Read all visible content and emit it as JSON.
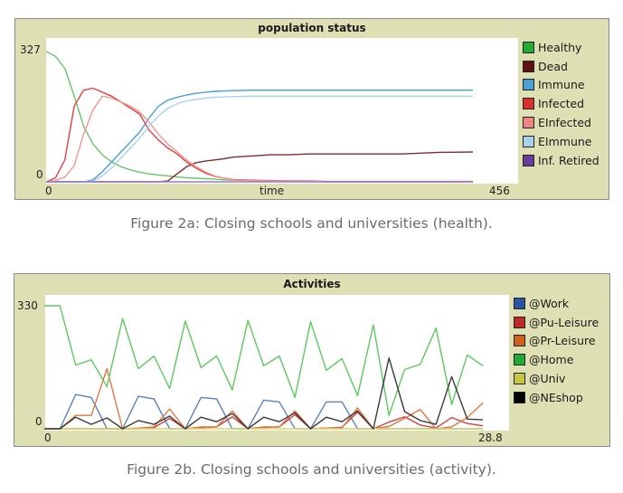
{
  "figure_a": {
    "title": "population status",
    "y_max_label": "327",
    "y_min_label": "0",
    "x_min_label": "0",
    "x_label": "time",
    "x_max_label": "456",
    "caption": "Figure 2a: Closing schools and universities (health).",
    "legend": [
      {
        "label": "Healthy",
        "color": "#22aa33"
      },
      {
        "label": "Dead",
        "color": "#5e1414"
      },
      {
        "label": "Immune",
        "color": "#4a9ed4"
      },
      {
        "label": "Infected",
        "color": "#d93030"
      },
      {
        "label": "EInfected",
        "color": "#ee8580"
      },
      {
        "label": "EImmune",
        "color": "#a9d1ec"
      },
      {
        "label": "Inf. Retired",
        "color": "#6a3d9a"
      }
    ]
  },
  "figure_b": {
    "title": "Activities",
    "y_max_label": "330",
    "y_min_label": "0",
    "x_min_label": "0",
    "x_max_label": "28.8",
    "caption": "Figure 2b. Closing schools and universities (activity).",
    "legend": [
      {
        "label": "@Work",
        "color": "#2a55a0"
      },
      {
        "label": "@Pu-Leisure",
        "color": "#c22828"
      },
      {
        "label": "@Pr-Leisure",
        "color": "#d2601a"
      },
      {
        "label": "@Home",
        "color": "#22aa33"
      },
      {
        "label": "@Univ",
        "color": "#c8c83a"
      },
      {
        "label": "@NEshop",
        "color": "#000000"
      }
    ]
  },
  "chart_data": [
    {
      "type": "line",
      "title": "population status",
      "xlabel": "time",
      "ylabel": "",
      "xlim": [
        0,
        456
      ],
      "ylim": [
        0,
        327
      ],
      "grid": false,
      "legend_position": "right",
      "x": [
        0,
        10,
        20,
        30,
        40,
        50,
        60,
        70,
        80,
        90,
        100,
        110,
        120,
        130,
        140,
        150,
        160,
        170,
        180,
        190,
        200,
        220,
        240,
        260,
        280,
        300,
        340,
        380,
        420,
        456
      ],
      "series": [
        {
          "name": "Healthy",
          "color": "#6ac46a",
          "values": [
            327,
            315,
            285,
            215,
            140,
            95,
            68,
            50,
            38,
            30,
            24,
            20,
            17,
            15,
            12,
            10,
            9,
            8,
            7,
            5,
            4,
            3,
            2,
            1,
            1,
            0,
            0,
            0,
            0,
            0
          ]
        },
        {
          "name": "Dead",
          "color": "#7a3030",
          "values": [
            0,
            0,
            0,
            0,
            0,
            0,
            0,
            0,
            0,
            0,
            0,
            0,
            0,
            2,
            20,
            38,
            48,
            52,
            55,
            58,
            62,
            65,
            68,
            68,
            70,
            70,
            70,
            70,
            74,
            75
          ]
        },
        {
          "name": "Immune",
          "color": "#4a9ed4",
          "values": [
            0,
            0,
            0,
            0,
            0,
            5,
            25,
            50,
            75,
            100,
            125,
            160,
            190,
            205,
            212,
            218,
            222,
            225,
            227,
            228,
            229,
            230,
            230,
            230,
            230,
            230,
            230,
            230,
            230,
            230
          ]
        },
        {
          "name": "Infected",
          "color": "#e04040",
          "values": [
            0,
            10,
            55,
            190,
            230,
            235,
            225,
            215,
            200,
            185,
            170,
            130,
            105,
            85,
            70,
            50,
            35,
            22,
            14,
            9,
            6,
            4,
            3,
            2,
            2,
            1,
            1,
            1,
            1,
            1
          ]
        },
        {
          "name": "EInfected",
          "color": "#f29490",
          "values": [
            0,
            3,
            12,
            40,
            120,
            180,
            215,
            210,
            200,
            190,
            175,
            150,
            120,
            95,
            75,
            55,
            38,
            25,
            15,
            9,
            5,
            3,
            2,
            1,
            1,
            0,
            0,
            0,
            0,
            0
          ]
        },
        {
          "name": "EImmune",
          "color": "#a9d1ec",
          "values": [
            0,
            0,
            0,
            0,
            0,
            2,
            15,
            35,
            60,
            85,
            110,
            140,
            165,
            185,
            196,
            203,
            207,
            210,
            212,
            213,
            214,
            215,
            215,
            215,
            215,
            215,
            215,
            215,
            215,
            215
          ]
        },
        {
          "name": "Inf. Retired",
          "color": "#9a7cc4",
          "values": [
            0,
            0,
            0,
            0,
            0,
            0,
            0,
            0,
            0,
            0,
            0,
            0,
            0,
            0,
            0,
            0,
            0,
            0,
            0,
            0,
            0,
            0,
            0,
            0,
            0,
            0,
            0,
            0,
            0,
            0
          ]
        }
      ]
    },
    {
      "type": "line",
      "title": "Activities",
      "xlabel": "",
      "ylabel": "",
      "xlim": [
        0,
        28.8
      ],
      "ylim": [
        0,
        330
      ],
      "grid": false,
      "legend_position": "right",
      "x": [
        0,
        1,
        2,
        3,
        4,
        5,
        6,
        7,
        8,
        9,
        10,
        11,
        12,
        13,
        14,
        15,
        16,
        17,
        18,
        19,
        20,
        21,
        22,
        23,
        24,
        25,
        26,
        27,
        28
      ],
      "series": [
        {
          "name": "@Work",
          "color": "#5a82c4",
          "values": [
            0,
            0,
            92,
            84,
            0,
            0,
            87,
            80,
            0,
            0,
            84,
            80,
            0,
            0,
            77,
            72,
            0,
            0,
            72,
            72,
            0,
            0,
            0,
            0,
            0,
            0,
            0,
            0,
            0
          ]
        },
        {
          "name": "@Pu-Leisure",
          "color": "#d04040",
          "values": [
            0,
            0,
            0,
            0,
            0,
            0,
            0,
            3,
            28,
            0,
            3,
            5,
            32,
            0,
            4,
            5,
            38,
            0,
            2,
            4,
            45,
            0,
            18,
            32,
            10,
            2,
            30,
            14,
            8
          ]
        },
        {
          "name": "@Pr-Leisure",
          "color": "#e07840",
          "values": [
            0,
            0,
            36,
            36,
            161,
            0,
            2,
            5,
            53,
            0,
            5,
            5,
            48,
            0,
            5,
            5,
            48,
            0,
            2,
            2,
            56,
            0,
            6,
            28,
            52,
            0,
            5,
            30,
            70
          ]
        },
        {
          "name": "@Home",
          "color": "#5ec85e",
          "values": [
            330,
            330,
            171,
            185,
            113,
            296,
            161,
            195,
            108,
            289,
            164,
            195,
            104,
            291,
            169,
            195,
            84,
            287,
            157,
            188,
            89,
            279,
            36,
            159,
            173,
            270,
            65,
            198,
            169
          ]
        },
        {
          "name": "@Univ",
          "color": "#d8d860",
          "values": [
            0,
            0,
            0,
            0,
            0,
            0,
            0,
            0,
            0,
            0,
            0,
            0,
            0,
            0,
            0,
            0,
            0,
            0,
            0,
            0,
            0,
            0,
            0,
            0,
            0,
            0,
            0,
            0,
            0
          ]
        },
        {
          "name": "@NEshop",
          "color": "#3a3a3a",
          "values": [
            0,
            0,
            31,
            12,
            29,
            0,
            22,
            12,
            34,
            0,
            31,
            19,
            41,
            0,
            31,
            19,
            43,
            0,
            31,
            19,
            48,
            0,
            190,
            46,
            22,
            12,
            140,
            26,
            24
          ]
        }
      ]
    }
  ]
}
